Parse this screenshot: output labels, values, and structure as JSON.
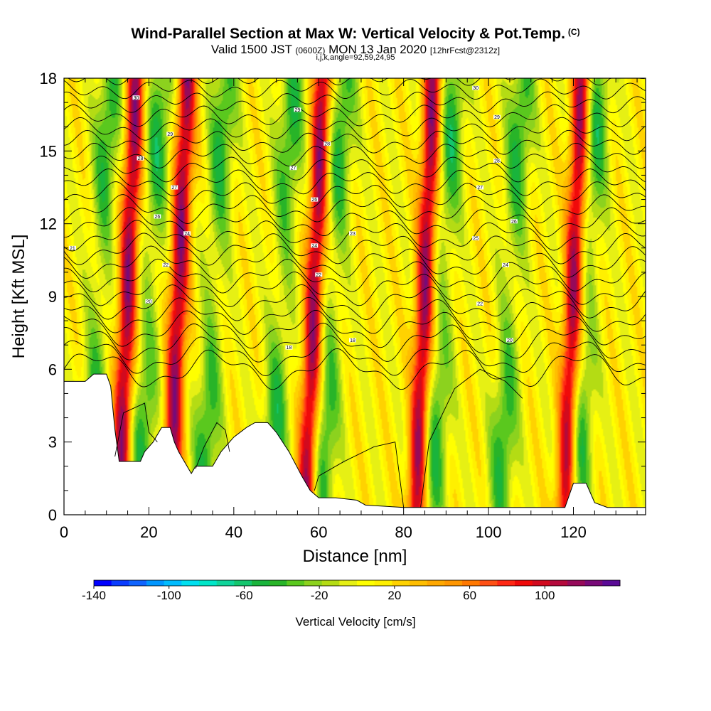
{
  "header": {
    "title": "Wind-Parallel Section at Max W: Vertical Velocity & Pot.Temp.",
    "title_mark": "(C)",
    "valid_prefix": "Valid 1500 JST",
    "valid_z": "(0600Z)",
    "valid_date": "MON 13 Jan 2020",
    "forecast": "[12hrFcst@2312z]",
    "ijk": "i,j,k,angle=92,59,24,95"
  },
  "chart_data": {
    "type": "heatmap",
    "title": "Wind-Parallel Section at Max W: Vertical Velocity & Pot.Temp.",
    "xlabel": "Distance [nm]",
    "ylabel": "Height [Kft MSL]",
    "xlim": [
      0,
      137
    ],
    "ylim": [
      0,
      18
    ],
    "x_ticks": [
      0,
      20,
      40,
      60,
      80,
      100,
      120
    ],
    "y_ticks": [
      0,
      3,
      6,
      9,
      12,
      15,
      18
    ],
    "colorbar": {
      "label": "Vertical Velocity [cm/s]",
      "range": [
        -140,
        140
      ],
      "tick_labels": [
        -140,
        -100,
        -60,
        -20,
        20,
        60,
        100
      ],
      "colors": [
        "#0000ff",
        "#0a3cff",
        "#0f64ff",
        "#0096ff",
        "#00bcff",
        "#00e0f0",
        "#00e6c8",
        "#10d49a",
        "#14c66e",
        "#19b43c",
        "#28b428",
        "#5ac81e",
        "#8cd21e",
        "#b4dc14",
        "#e6f014",
        "#ffff00",
        "#fff000",
        "#ffd200",
        "#ffbe00",
        "#ffa800",
        "#ff9600",
        "#ff7800",
        "#ff5014",
        "#ff2814",
        "#f00a0a",
        "#d20a1e",
        "#b40a3c",
        "#960a5a",
        "#780a78",
        "#5a0a96"
      ]
    },
    "updrafts_nm": [
      17,
      29,
      61,
      87,
      122
    ],
    "downdrafts_nm": [
      11,
      23,
      38,
      54,
      66,
      92,
      108,
      126
    ],
    "terrain_kft": [
      [
        0,
        5.5
      ],
      [
        5,
        5.5
      ],
      [
        7,
        5.8
      ],
      [
        10,
        5.8
      ],
      [
        11,
        5.3
      ],
      [
        12,
        3.5
      ],
      [
        13,
        2.2
      ],
      [
        18,
        2.2
      ],
      [
        19,
        2.6
      ],
      [
        21,
        3.0
      ],
      [
        23,
        3.6
      ],
      [
        25,
        3.6
      ],
      [
        26,
        3.0
      ],
      [
        27,
        2.6
      ],
      [
        29,
        2.0
      ],
      [
        30,
        1.7
      ],
      [
        31,
        2.0
      ],
      [
        35,
        2.0
      ],
      [
        37,
        2.6
      ],
      [
        40,
        3.2
      ],
      [
        43,
        3.6
      ],
      [
        45,
        3.8
      ],
      [
        48,
        3.8
      ],
      [
        50,
        3.4
      ],
      [
        53,
        2.6
      ],
      [
        56,
        1.6
      ],
      [
        58,
        1.0
      ],
      [
        60,
        0.7
      ],
      [
        64,
        0.7
      ],
      [
        69,
        0.6
      ],
      [
        71,
        0.4
      ],
      [
        80,
        0.3
      ],
      [
        100,
        0.3
      ],
      [
        118,
        0.3
      ],
      [
        120,
        1.3
      ],
      [
        123,
        1.3
      ],
      [
        125,
        0.5
      ],
      [
        128,
        0.3
      ],
      [
        137,
        0.3
      ]
    ],
    "theta_labels": [
      {
        "x": 17,
        "y": 17.2,
        "text": "30"
      },
      {
        "x": 25,
        "y": 15.7,
        "text": "29"
      },
      {
        "x": 18,
        "y": 14.7,
        "text": "28"
      },
      {
        "x": 26,
        "y": 13.5,
        "text": "27"
      },
      {
        "x": 22,
        "y": 12.3,
        "text": "26"
      },
      {
        "x": 29,
        "y": 11.6,
        "text": "24"
      },
      {
        "x": 24,
        "y": 10.3,
        "text": "22"
      },
      {
        "x": 20,
        "y": 8.8,
        "text": "20"
      },
      {
        "x": 2,
        "y": 11.0,
        "text": "21"
      },
      {
        "x": 55,
        "y": 16.7,
        "text": "29"
      },
      {
        "x": 62,
        "y": 15.3,
        "text": "28"
      },
      {
        "x": 54,
        "y": 14.3,
        "text": "27"
      },
      {
        "x": 59,
        "y": 13.0,
        "text": "26"
      },
      {
        "x": 59,
        "y": 11.1,
        "text": "24"
      },
      {
        "x": 60,
        "y": 9.9,
        "text": "22"
      },
      {
        "x": 68,
        "y": 11.6,
        "text": "23"
      },
      {
        "x": 53,
        "y": 6.9,
        "text": "18"
      },
      {
        "x": 68,
        "y": 7.2,
        "text": "18"
      },
      {
        "x": 97,
        "y": 17.6,
        "text": "30"
      },
      {
        "x": 102,
        "y": 16.4,
        "text": "29"
      },
      {
        "x": 102,
        "y": 14.6,
        "text": "28"
      },
      {
        "x": 98,
        "y": 13.5,
        "text": "27"
      },
      {
        "x": 106,
        "y": 12.1,
        "text": "26"
      },
      {
        "x": 97,
        "y": 11.4,
        "text": "25"
      },
      {
        "x": 104,
        "y": 10.3,
        "text": "24"
      },
      {
        "x": 98,
        "y": 8.7,
        "text": "22"
      },
      {
        "x": 105,
        "y": 7.2,
        "text": "20"
      }
    ]
  }
}
